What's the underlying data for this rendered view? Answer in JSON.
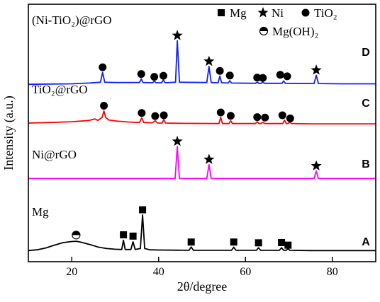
{
  "chart_data": {
    "type": "line",
    "xlabel": "2θ/degree",
    "ylabel": "Intensity (a.u.)",
    "xlim": [
      10,
      90
    ],
    "x_ticks": [
      "20",
      "40",
      "60",
      "80"
    ],
    "series": [
      {
        "name": "Mg",
        "letter": "A",
        "color": "#000000",
        "baseline": 0,
        "points": [
          [
            10,
            0.2
          ],
          [
            12,
            0.5
          ],
          [
            14,
            1.2
          ],
          [
            16,
            2.3
          ],
          [
            18,
            3.3
          ],
          [
            20,
            3.7
          ],
          [
            21,
            3.8
          ],
          [
            22,
            3.5
          ],
          [
            24,
            2.6
          ],
          [
            26,
            1.6
          ],
          [
            28,
            1.0
          ],
          [
            30,
            0.7
          ],
          [
            31.5,
            0.6
          ],
          [
            31.9,
            4.2
          ],
          [
            32.3,
            0.6
          ],
          [
            33.6,
            0.6
          ],
          [
            34.1,
            3.6
          ],
          [
            34.6,
            0.6
          ],
          [
            35.8,
            1.0
          ],
          [
            36.3,
            14.0
          ],
          [
            36.8,
            1.0
          ],
          [
            38,
            0.5
          ],
          [
            40,
            0.4
          ],
          [
            47,
            0.3
          ],
          [
            47.5,
            1.6
          ],
          [
            48,
            0.3
          ],
          [
            56.8,
            0.3
          ],
          [
            57.3,
            1.5
          ],
          [
            57.8,
            0.3
          ],
          [
            62.5,
            0.3
          ],
          [
            63,
            1.3
          ],
          [
            63.5,
            0.3
          ],
          [
            67.8,
            0.3
          ],
          [
            68.3,
            1.3
          ],
          [
            68.8,
            0.3
          ],
          [
            69.4,
            0.3
          ],
          [
            69.8,
            1.0
          ],
          [
            70.2,
            0.3
          ],
          [
            75,
            0.2
          ],
          [
            90,
            0.2
          ]
        ]
      },
      {
        "name": "Ni@rGO",
        "letter": "B",
        "color": "#ff00ff",
        "baseline": 28,
        "points": [
          [
            10,
            0.1
          ],
          [
            43.8,
            0.1
          ],
          [
            44.3,
            12.5
          ],
          [
            44.8,
            0.1
          ],
          [
            51.1,
            0.1
          ],
          [
            51.6,
            5.5
          ],
          [
            52.1,
            0.1
          ],
          [
            75.8,
            0.1
          ],
          [
            76.3,
            3.0
          ],
          [
            76.8,
            0.1
          ],
          [
            90,
            0.1
          ]
        ]
      },
      {
        "name": "TiO2@rGO",
        "letter": "C",
        "color": "#ff0000",
        "baseline": 49,
        "points": [
          [
            10,
            0.6
          ],
          [
            15,
            0.8
          ],
          [
            20,
            1.1
          ],
          [
            24,
            1.6
          ],
          [
            25.3,
            2.2
          ],
          [
            26,
            1.6
          ],
          [
            27,
            2.8
          ],
          [
            27.4,
            5.3
          ],
          [
            27.8,
            2.8
          ],
          [
            28.5,
            1.8
          ],
          [
            30,
            1.4
          ],
          [
            33,
            1.0
          ],
          [
            35.6,
            0.8
          ],
          [
            36.1,
            2.6
          ],
          [
            36.6,
            0.8
          ],
          [
            38.5,
            0.7
          ],
          [
            39.2,
            1.5
          ],
          [
            39.8,
            0.6
          ],
          [
            40.8,
            0.6
          ],
          [
            41.2,
            1.9
          ],
          [
            41.6,
            0.6
          ],
          [
            44,
            0.5
          ],
          [
            53.9,
            0.4
          ],
          [
            54.3,
            2.8
          ],
          [
            54.7,
            0.4
          ],
          [
            56.2,
            0.4
          ],
          [
            56.6,
            1.5
          ],
          [
            57,
            0.4
          ],
          [
            62.3,
            0.4
          ],
          [
            62.7,
            1.1
          ],
          [
            63.1,
            0.4
          ],
          [
            63.6,
            0.4
          ],
          [
            64.0,
            0.9
          ],
          [
            64.4,
            0.4
          ],
          [
            68.6,
            0.4
          ],
          [
            69.0,
            1.7
          ],
          [
            69.4,
            0.4
          ],
          [
            69.8,
            0.4
          ],
          [
            70.2,
            0.9
          ],
          [
            70.6,
            0.4
          ],
          [
            75,
            0.3
          ],
          [
            90,
            0.3
          ]
        ]
      },
      {
        "name": "(Ni-TiO2)@rGO",
        "letter": "D",
        "color": "#1020ff",
        "baseline": 64.5,
        "points": [
          [
            10,
            0.1
          ],
          [
            20,
            0.3
          ],
          [
            24,
            0.6
          ],
          [
            26.6,
            0.9
          ],
          [
            27.1,
            4.7
          ],
          [
            27.6,
            0.9
          ],
          [
            30,
            0.8
          ],
          [
            35.6,
            0.8
          ],
          [
            36.0,
            2.2
          ],
          [
            36.4,
            0.8
          ],
          [
            38.6,
            0.7
          ],
          [
            39.0,
            1.3
          ],
          [
            39.4,
            0.7
          ],
          [
            40.7,
            0.7
          ],
          [
            41.1,
            1.8
          ],
          [
            41.5,
            0.7
          ],
          [
            43.9,
            0.9
          ],
          [
            44.3,
            17.0
          ],
          [
            44.8,
            0.9
          ],
          [
            51.1,
            0.8
          ],
          [
            51.6,
            7.0
          ],
          [
            52.1,
            0.8
          ],
          [
            53.7,
            0.7
          ],
          [
            54.1,
            3.3
          ],
          [
            54.5,
            0.7
          ],
          [
            56.0,
            0.6
          ],
          [
            56.4,
            1.5
          ],
          [
            56.8,
            0.6
          ],
          [
            62.3,
            0.5
          ],
          [
            62.7,
            0.9
          ],
          [
            63.1,
            0.5
          ],
          [
            63.6,
            0.5
          ],
          [
            64.0,
            0.9
          ],
          [
            64.4,
            0.5
          ],
          [
            68.4,
            0.5
          ],
          [
            68.8,
            1.4
          ],
          [
            69.2,
            0.5
          ],
          [
            75.8,
            0.4
          ],
          [
            76.3,
            3.6
          ],
          [
            76.8,
            0.4
          ],
          [
            82,
            0.3
          ],
          [
            90,
            0.3
          ]
        ]
      }
    ],
    "trace_labels": [
      "Mg",
      "Ni@rGO",
      "TiO₂@rGO",
      "(Ni-TiO₂)@rGO"
    ],
    "markers": [
      {
        "series": 0,
        "symbol": "half",
        "x": 21,
        "y": 6.2
      },
      {
        "series": 0,
        "symbol": "square",
        "x": 31.9,
        "y": 6.3
      },
      {
        "series": 0,
        "symbol": "square",
        "x": 34.1,
        "y": 5.8
      },
      {
        "series": 0,
        "symbol": "square",
        "x": 36.3,
        "y": 16.0
      },
      {
        "series": 0,
        "symbol": "square",
        "x": 47.5,
        "y": 3.5
      },
      {
        "series": 0,
        "symbol": "square",
        "x": 57.3,
        "y": 3.5
      },
      {
        "series": 0,
        "symbol": "square",
        "x": 63.0,
        "y": 3.2
      },
      {
        "series": 0,
        "symbol": "square",
        "x": 68.3,
        "y": 3.3
      },
      {
        "series": 0,
        "symbol": "square",
        "x": 69.8,
        "y": 2.3
      },
      {
        "series": 1,
        "symbol": "star",
        "x": 44.3,
        "y": 14.5
      },
      {
        "series": 1,
        "symbol": "star",
        "x": 51.6,
        "y": 7.5
      },
      {
        "series": 1,
        "symbol": "star",
        "x": 76.3,
        "y": 5.0
      },
      {
        "series": 2,
        "symbol": "circle",
        "x": 27.4,
        "y": 7.3
      },
      {
        "series": 2,
        "symbol": "circle",
        "x": 36.1,
        "y": 4.5
      },
      {
        "series": 2,
        "symbol": "circle",
        "x": 39.2,
        "y": 3.3
      },
      {
        "series": 2,
        "symbol": "circle",
        "x": 41.2,
        "y": 3.6
      },
      {
        "series": 2,
        "symbol": "circle",
        "x": 54.3,
        "y": 4.7
      },
      {
        "series": 2,
        "symbol": "circle",
        "x": 56.6,
        "y": 3.4
      },
      {
        "series": 2,
        "symbol": "circle",
        "x": 62.7,
        "y": 2.9
      },
      {
        "series": 2,
        "symbol": "circle",
        "x": 64.5,
        "y": 2.7
      },
      {
        "series": 2,
        "symbol": "circle",
        "x": 68.5,
        "y": 3.6
      },
      {
        "series": 2,
        "symbol": "circle",
        "x": 70.3,
        "y": 2.4
      },
      {
        "series": 3,
        "symbol": "circle",
        "x": 27.1,
        "y": 6.7
      },
      {
        "series": 3,
        "symbol": "circle",
        "x": 36.0,
        "y": 4.1
      },
      {
        "series": 3,
        "symbol": "circle",
        "x": 39.0,
        "y": 3.0
      },
      {
        "series": 3,
        "symbol": "circle",
        "x": 41.1,
        "y": 3.4
      },
      {
        "series": 3,
        "symbol": "star",
        "x": 44.3,
        "y": 19.0
      },
      {
        "series": 3,
        "symbol": "star",
        "x": 51.6,
        "y": 9.0
      },
      {
        "series": 3,
        "symbol": "circle",
        "x": 54.1,
        "y": 5.3
      },
      {
        "series": 3,
        "symbol": "circle",
        "x": 56.4,
        "y": 3.5
      },
      {
        "series": 3,
        "symbol": "circle",
        "x": 62.7,
        "y": 2.7
      },
      {
        "series": 3,
        "symbol": "circle",
        "x": 64.0,
        "y": 2.6
      },
      {
        "series": 3,
        "symbol": "circle",
        "x": 68.0,
        "y": 3.8
      },
      {
        "series": 3,
        "symbol": "circle",
        "x": 69.6,
        "y": 3.2
      },
      {
        "series": 3,
        "symbol": "star",
        "x": 76.3,
        "y": 5.6
      }
    ],
    "legend": {
      "placement": "top-right",
      "items": [
        {
          "symbol": "square",
          "label": "Mg"
        },
        {
          "symbol": "star",
          "label": "Ni"
        },
        {
          "symbol": "circle",
          "label": "TiO₂"
        },
        {
          "symbol": "half",
          "label": "Mg(OH)₂"
        }
      ]
    }
  }
}
